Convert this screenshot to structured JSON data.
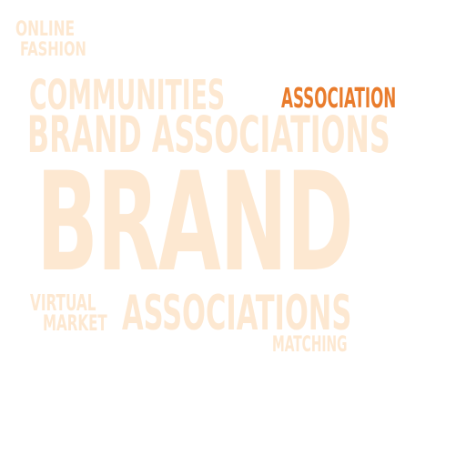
{
  "colors": {
    "faint": "#fde8d1",
    "accent": "#e97c2c",
    "background": "#ffffff"
  },
  "words": {
    "online": "ONLINE",
    "fashion": "FASHION",
    "communities": "COMMUNITIES",
    "association": "ASSOCIATION",
    "brand_associations": "BRAND ASSOCIATIONS",
    "brand": "BRAND",
    "virtual": "VIRTUAL",
    "market": "MARKET",
    "associations": "ASSOCIATIONS",
    "matching": "MATCHING"
  }
}
